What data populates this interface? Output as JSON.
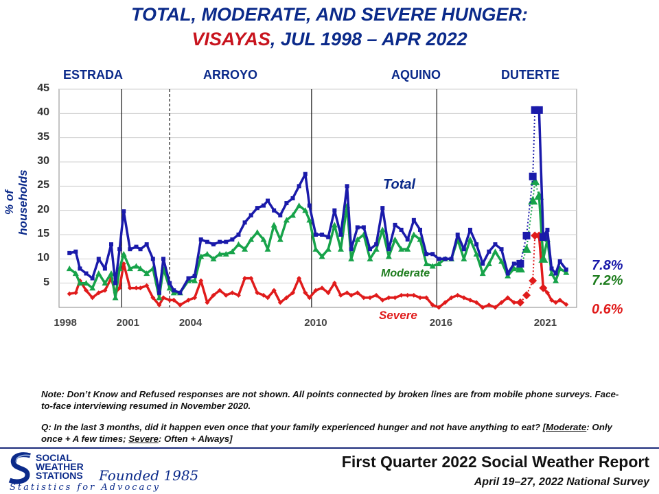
{
  "title_line1": "TOTAL, MODERATE, AND SEVERE HUNGER:",
  "title_region": "VISAYAS",
  "title_rest": ", JUL 1998 – APR 2022",
  "administrations": [
    "ESTRADA",
    "ARROYO",
    "AQUINO",
    "DUTERTE"
  ],
  "note": "Note: Don’t Know and Refused responses are not shown. All points connected by broken lines are from mobile phone surveys. Face-to-face interviewing resumed in November 2020.",
  "question_prefix": "Q: In the last 3 months, did it happen even once that your family experienced hunger and not have anything to eat? [",
  "question_moderate_word": "Moderate",
  "question_moderate_def": ": Only once + A few times; ",
  "question_severe_word": "Severe",
  "question_severe_def": ": Often + Always]",
  "logo": {
    "line1": "SOCIAL",
    "line2": "WEATHER",
    "line3": "STATIONS",
    "founded": "Founded 1985",
    "tagline": "Statistics for Advocacy"
  },
  "report_title": "First Quarter 2022 Social Weather Report",
  "survey_dates": "April 19–27, 2022 National Survey",
  "chart_data": {
    "type": "line",
    "ylabel": "% of households",
    "ylim": [
      0,
      45
    ],
    "yticks": [
      5,
      10,
      15,
      20,
      25,
      30,
      35,
      40,
      45
    ],
    "xlim": [
      1998.0,
      2022.8
    ],
    "xticks": [
      1998,
      2001,
      2004,
      2010,
      2016,
      2021
    ],
    "administration_boundaries": [
      {
        "year": 2001.0,
        "style": "solid"
      },
      {
        "year": 2003.3,
        "style": "dashed"
      },
      {
        "year": 2010.1,
        "style": "solid"
      },
      {
        "year": 2016.1,
        "style": "solid"
      }
    ],
    "colors": {
      "total": "#1a1aaa",
      "moderate": "#17a34a",
      "severe": "#e01b1b"
    },
    "end_labels": {
      "total": "7.8%",
      "moderate": "7.2%",
      "severe": "0.6%"
    },
    "end_label_colors": {
      "total": "#1a1aaa",
      "moderate": "#1e7d1e",
      "severe": "#e01b1b"
    },
    "series_labels": {
      "total": "Total",
      "moderate": "Moderate",
      "severe": "Severe"
    },
    "series_label_colors": {
      "total": "#0b2a8a",
      "moderate": "#1e7d1e",
      "severe": "#e01b1b"
    },
    "x": [
      1998.5,
      1998.8,
      1999.0,
      1999.3,
      1999.6,
      1999.9,
      2000.2,
      2000.5,
      2000.7,
      2000.9,
      2001.1,
      2001.4,
      2001.7,
      2001.9,
      2002.2,
      2002.5,
      2002.8,
      2003.0,
      2003.3,
      2003.5,
      2003.8,
      2004.2,
      2004.5,
      2004.8,
      2005.1,
      2005.4,
      2005.7,
      2006.0,
      2006.3,
      2006.6,
      2006.9,
      2007.2,
      2007.5,
      2007.8,
      2008.0,
      2008.3,
      2008.6,
      2008.9,
      2009.2,
      2009.5,
      2009.8,
      2010.0,
      2010.3,
      2010.6,
      2010.9,
      2011.2,
      2011.5,
      2011.8,
      2012.0,
      2012.3,
      2012.6,
      2012.9,
      2013.2,
      2013.5,
      2013.8,
      2014.1,
      2014.4,
      2014.7,
      2015.0,
      2015.3,
      2015.6,
      2015.9,
      2016.2,
      2016.5,
      2016.8,
      2017.1,
      2017.4,
      2017.7,
      2018.0,
      2018.3,
      2018.6,
      2018.9,
      2019.2,
      2019.5,
      2019.8,
      2020.1,
      2020.4,
      2020.7,
      2020.8,
      2021.0,
      2021.2,
      2021.4,
      2021.6,
      2021.8,
      2022.0,
      2022.3
    ],
    "series": [
      {
        "key": "total",
        "name": "Total",
        "values": [
          11.2,
          11.5,
          8,
          7,
          6,
          10,
          8,
          13,
          5,
          12,
          19.8,
          12,
          12.5,
          12,
          13,
          10,
          3,
          10,
          5,
          3.5,
          3,
          6,
          6.5,
          14,
          13.5,
          13,
          13.5,
          13.5,
          14,
          15,
          17.5,
          19,
          20.5,
          21,
          22,
          20,
          19,
          21.5,
          22.5,
          25,
          27.5,
          21,
          15,
          15,
          14.5,
          20,
          15,
          25,
          12,
          16.5,
          16.5,
          12,
          13,
          20.5,
          12,
          17,
          16,
          14,
          18,
          16,
          11,
          11,
          10,
          10,
          10,
          15,
          12,
          16,
          13,
          9,
          11.5,
          13,
          12,
          7,
          9,
          9,
          14.8,
          27,
          40.7,
          40.7,
          14.5,
          16,
          8,
          7,
          9.5,
          7.8
        ]
      },
      {
        "key": "moderate",
        "name": "Moderate",
        "values": [
          8,
          7,
          5,
          5,
          4,
          7,
          5,
          7,
          2,
          8,
          11,
          8,
          8.5,
          8,
          7,
          8,
          2,
          8,
          4,
          3,
          3,
          5.5,
          5.5,
          10.5,
          11,
          10,
          11,
          11,
          11.5,
          13,
          12,
          14,
          15.5,
          14,
          12,
          17,
          14,
          18,
          19,
          21,
          20,
          18,
          12,
          10.5,
          12,
          17,
          12,
          21,
          10,
          14,
          15,
          10,
          12,
          16,
          10.5,
          14,
          12,
          12,
          15,
          14,
          9,
          8.5,
          9,
          10,
          10,
          14,
          10,
          14,
          11,
          7,
          9,
          11.5,
          9.5,
          6.5,
          8,
          8,
          12,
          22,
          26,
          23,
          10,
          14,
          7,
          5.5,
          8,
          7.2
        ]
      },
      {
        "key": "severe",
        "name": "Severe",
        "values": [
          2.8,
          3,
          5.5,
          3.5,
          2,
          3,
          3.5,
          6,
          3,
          4,
          9,
          4,
          4,
          4,
          4.5,
          2,
          0.5,
          2,
          1.5,
          1.5,
          0.5,
          1.5,
          2,
          5.5,
          1,
          2.5,
          3.5,
          2.5,
          3,
          2.5,
          6,
          6,
          3,
          2.5,
          2,
          3.5,
          1,
          2,
          3,
          6,
          3,
          2,
          3.5,
          4,
          3,
          5,
          2.5,
          3,
          2.5,
          3,
          2,
          2,
          2.5,
          1.5,
          2,
          2,
          2.5,
          2.5,
          2.5,
          2,
          2,
          0.5,
          0,
          1,
          2,
          2.5,
          2,
          1.5,
          1,
          0,
          0.5,
          0,
          1,
          2,
          1,
          1,
          2.5,
          5.5,
          14.8,
          14.8,
          4,
          3,
          1.5,
          1,
          1.5,
          0.6
        ]
      }
    ],
    "mobile_phone_segment": {
      "from_index": 75,
      "to_index": 79
    }
  }
}
